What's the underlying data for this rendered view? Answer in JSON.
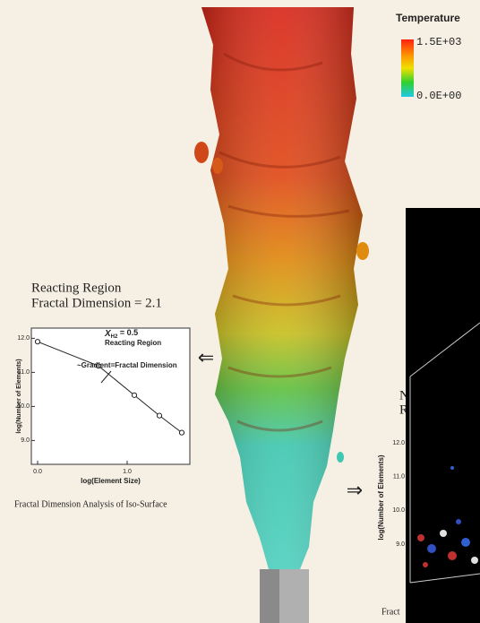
{
  "colorbar": {
    "title": "Temperature",
    "max_label": "1.5E+03",
    "min_label": "0.0E+00",
    "colors": [
      "#ff2010",
      "#ff8a00",
      "#f0e000",
      "#30d030",
      "#20c8e8"
    ]
  },
  "left_panel": {
    "title_line1": "Reacting Region",
    "title_line2": "Fractal Dimension = 2.1",
    "caption": "Fractal Dimension Analysis of Iso-Surface",
    "arrow": "⇐",
    "chart_data": {
      "type": "line",
      "x_label": "log(Element Size)",
      "y_label": "log(Number of Elements)",
      "annotation_var": "X",
      "annotation_sub": "H2",
      "annotation_value": " = 0.5",
      "annotation_region": "Reacting Region",
      "annotation_gradient": "~Gradient=Fractal Dimension",
      "x": [
        0.0,
        0.68,
        1.08,
        1.36,
        1.61
      ],
      "values": [
        11.9,
        11.19,
        10.33,
        9.73,
        9.23
      ],
      "color": "#222222",
      "xlim": [
        -0.07,
        1.7
      ],
      "ylim": [
        8.3,
        12.3
      ],
      "xticks": [
        {
          "value": 0,
          "label": "0.0"
        },
        {
          "value": 1,
          "label": "1.0"
        }
      ],
      "yticks": [
        {
          "value": 9,
          "label": "9.0"
        },
        {
          "value": 10,
          "label": "10.0"
        },
        {
          "value": 11,
          "label": "11.0"
        },
        {
          "value": 12,
          "label": "12.0"
        }
      ]
    }
  },
  "right_panel": {
    "arrow": "⇒",
    "title_fragment1": "N",
    "title_fragment2": "R",
    "y_label": "log(Number of Elements)",
    "caption_fragment": "Fract",
    "yticks": [
      {
        "value": 12,
        "label": "12.0"
      },
      {
        "value": 11,
        "label": "11.0"
      },
      {
        "value": 10,
        "label": "10.0"
      },
      {
        "value": 9,
        "label": "9.0"
      }
    ]
  }
}
